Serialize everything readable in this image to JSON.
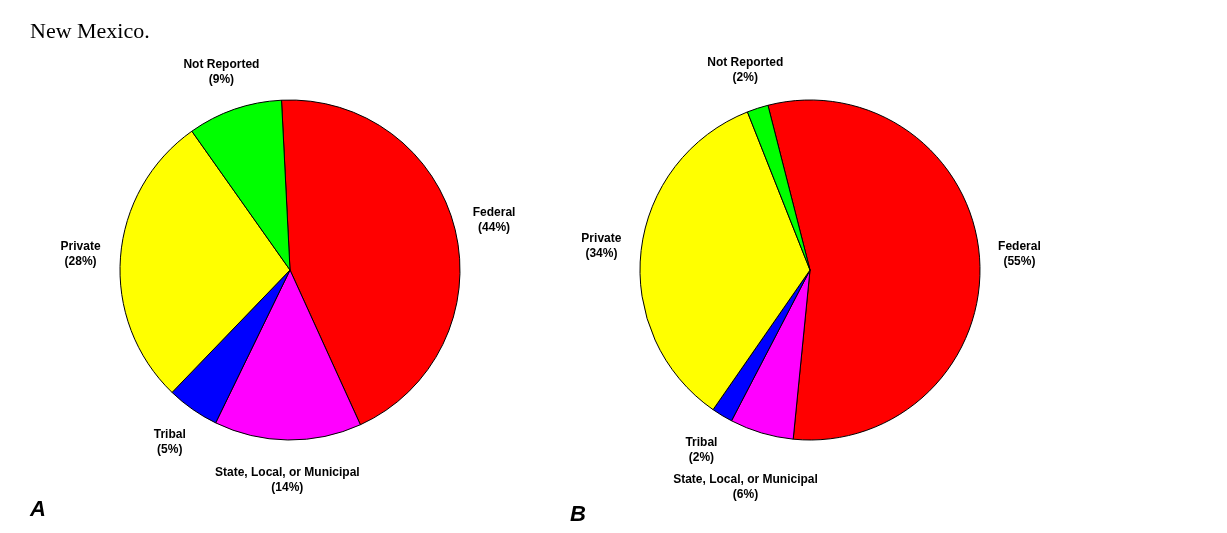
{
  "chart_data": [
    {
      "type": "pie",
      "title": "A",
      "annotations": [
        "New Mexico."
      ],
      "categories": [
        "Federal",
        "State, Local, or Municipal",
        "Tribal",
        "Private",
        "Not Reported"
      ],
      "values": [
        44,
        14,
        5,
        28,
        9
      ],
      "colors": [
        "#ff0000",
        "#ff00ff",
        "#0000ff",
        "#ffff00",
        "#00ff00"
      ],
      "value_labels": [
        "(44%)",
        "(14%)",
        "(5%)",
        "(28%)",
        "(9%)"
      ],
      "legend": false
    },
    {
      "type": "pie",
      "title": "B",
      "categories": [
        "Federal",
        "State, Local, or Municipal",
        "Tribal",
        "Private",
        "Not Reported"
      ],
      "values": [
        55,
        6,
        2,
        34,
        2
      ],
      "colors": [
        "#ff0000",
        "#ff00ff",
        "#0000ff",
        "#ffff00",
        "#00ff00"
      ],
      "value_labels": [
        "(55%)",
        "(6%)",
        "(2%)",
        "(34%)",
        "(2%)"
      ],
      "legend": false
    }
  ]
}
